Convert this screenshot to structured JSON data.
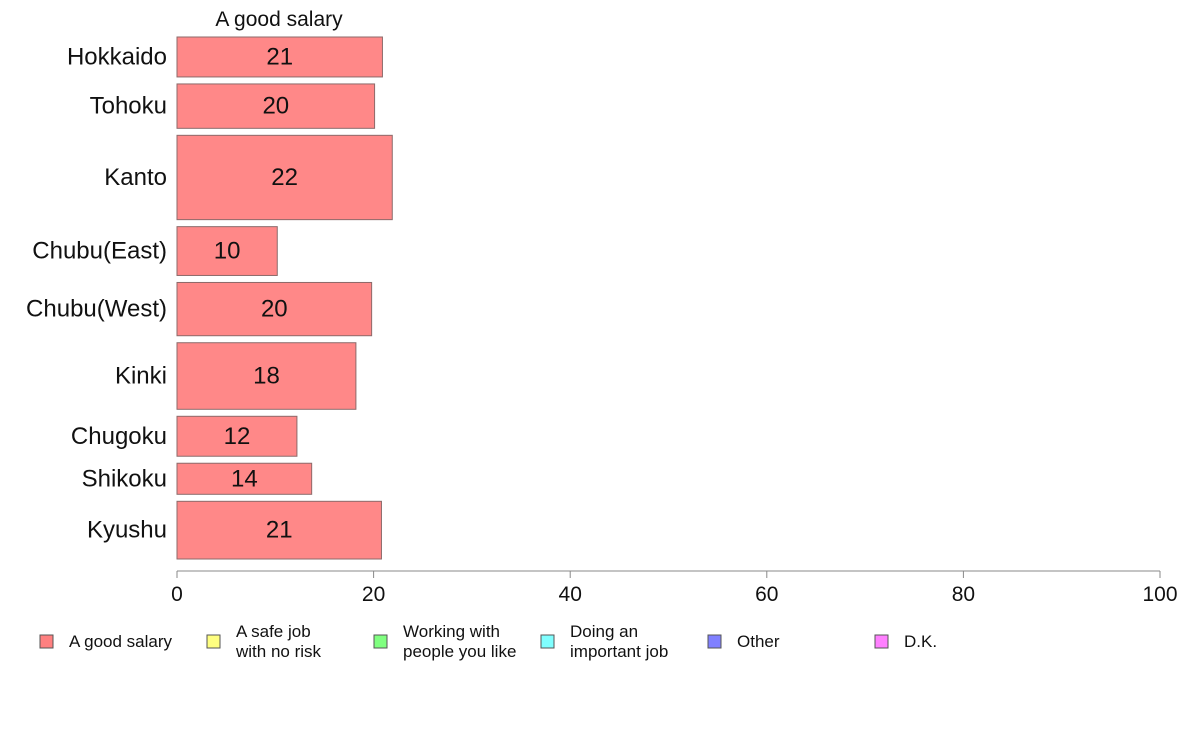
{
  "chart_data": {
    "type": "bar",
    "orientation": "horizontal",
    "title": "A good salary",
    "categories": [
      "Hokkaido",
      "Tohoku",
      "Kanto",
      "Chubu(East)",
      "Chubu(West)",
      "Kinki",
      "Chugoku",
      "Shikoku",
      "Kyushu"
    ],
    "category_weights": [
      0.9,
      1.0,
      1.9,
      1.1,
      1.2,
      1.5,
      0.9,
      0.7,
      1.3
    ],
    "values": [
      20.9,
      20.1,
      21.9,
      10.2,
      19.8,
      18.2,
      12.2,
      13.7,
      20.8
    ],
    "value_labels": [
      "21",
      "20",
      "22",
      "10",
      "20",
      "18",
      "12",
      "14",
      "21"
    ],
    "xlim": [
      0,
      100
    ],
    "xticks": [
      0,
      20,
      40,
      60,
      80,
      100
    ],
    "xlabel": "",
    "ylabel": "",
    "grid": false,
    "bar_color": "#FF8888",
    "bar_edge_color": "#8C6A6A",
    "axis_color": "#888888",
    "legend_placement": "bottom",
    "legend": [
      {
        "lines": [
          "A good salary"
        ],
        "color": "#FF8080"
      },
      {
        "lines": [
          "A safe job",
          "with no risk"
        ],
        "color": "#FFFF80"
      },
      {
        "lines": [
          "Working with",
          "people you like"
        ],
        "color": "#80FF80"
      },
      {
        "lines": [
          "Doing an",
          "important job"
        ],
        "color": "#80FFFF"
      },
      {
        "lines": [
          "Other"
        ],
        "color": "#8080FF"
      },
      {
        "lines": [
          "D.K."
        ],
        "color": "#FF80FF"
      }
    ]
  }
}
